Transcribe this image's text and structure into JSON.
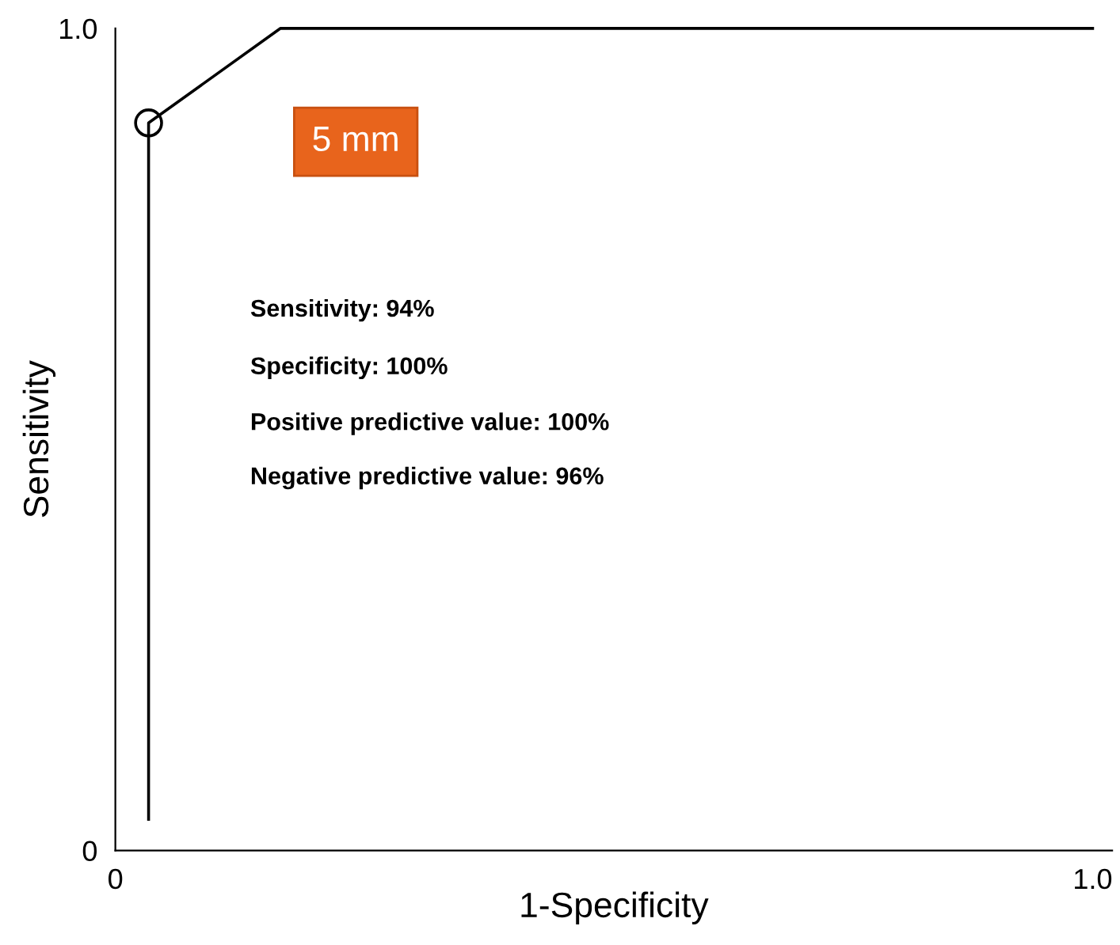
{
  "chart_data": {
    "type": "line",
    "xlabel": "1-Specificity",
    "ylabel": "Sensitivity",
    "series": [
      {
        "color": "#000000",
        "x": [
          0.034,
          0.034,
          0.169,
          1.0
        ],
        "values": [
          0.038,
          0.885,
          1.0,
          1.0
        ],
        "marker": "none"
      },
      {
        "type": "scatter",
        "color": "#000000",
        "x": [
          0.034
        ],
        "values": [
          0.885
        ],
        "marker": "circle"
      }
    ],
    "annotations": [
      "5 mm",
      "Sensitivity: 94%",
      "Specificity: 100%",
      "Positive predictive value: 100%",
      "Negative predictive value: 96%"
    ],
    "xlim": [
      0,
      1.02
    ],
    "ylim": [
      0,
      1.0
    ],
    "xticks": [
      0,
      {
        "value": 1.0,
        "label": "1.0"
      }
    ],
    "yticks": [
      0,
      {
        "value": 1.0,
        "label": "1.0"
      }
    ],
    "grid": false,
    "legend": false
  }
}
